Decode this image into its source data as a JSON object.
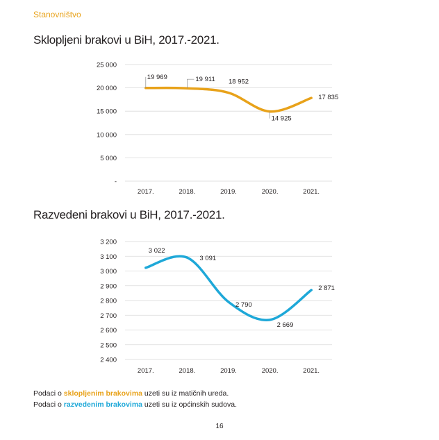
{
  "header": {
    "section": "Stanovništvo"
  },
  "charts": {
    "marriages_title": "Sklopljeni brakovi u BiH, 2017.-2021.",
    "divorces_title": "Razvedeni brakovi u BiH, 2017.-2021."
  },
  "chart_data": [
    {
      "type": "line",
      "title": "Sklopljeni brakovi u BiH, 2017.-2021.",
      "categories": [
        "2017.",
        "2018.",
        "2019.",
        "2020.",
        "2021."
      ],
      "values": [
        19969,
        19911,
        18952,
        14925,
        17835
      ],
      "data_labels": [
        "19 969",
        "19 911",
        "18 952",
        "14 925",
        "17 835"
      ],
      "yticks": [
        0,
        5000,
        10000,
        15000,
        20000,
        25000
      ],
      "ytick_labels": [
        "-",
        "5 000",
        "10 000",
        "15 000",
        "20 000",
        "25 000"
      ],
      "ylim": [
        0,
        25000
      ],
      "color": "#e8a21a",
      "grid": "horizontal",
      "legend": "none"
    },
    {
      "type": "line",
      "title": "Razvedeni brakovi u BiH, 2017.-2021.",
      "categories": [
        "2017.",
        "2018.",
        "2019.",
        "2020.",
        "2021."
      ],
      "values": [
        3022,
        3091,
        2790,
        2669,
        2871
      ],
      "data_labels": [
        "3 022",
        "3 091",
        "2 790",
        "2 669",
        "2 871"
      ],
      "yticks": [
        2400,
        2500,
        2600,
        2700,
        2800,
        2900,
        3000,
        3100,
        3200
      ],
      "ytick_labels": [
        "2 400",
        "2 500",
        "2 600",
        "2 700",
        "2 800",
        "2 900",
        "3 000",
        "3 100",
        "3 200"
      ],
      "ylim": [
        2400,
        3200
      ],
      "color": "#1ea8d8",
      "grid": "horizontal",
      "legend": "none"
    }
  ],
  "footnotes": {
    "line1": {
      "prefix": "Podaci o ",
      "highlight": "sklopljenim brakovima",
      "suffix": " uzeti su iz matičnih ureda."
    },
    "line2": {
      "prefix": "Podaci o ",
      "highlight": "razvedenim brakovima",
      "suffix": " uzeti su iz općinskih sudova."
    }
  },
  "page": {
    "number": "16"
  }
}
